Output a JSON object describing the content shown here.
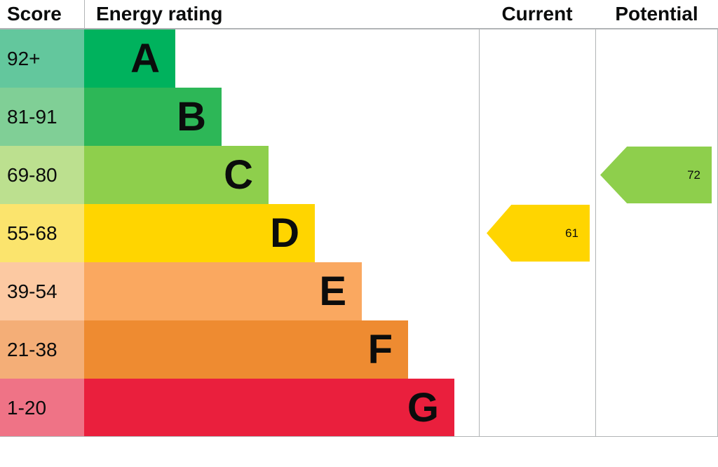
{
  "header": {
    "score": "Score",
    "energy_rating": "Energy rating",
    "current": "Current",
    "potential": "Potential"
  },
  "chart_data": {
    "type": "bar",
    "title": "Energy rating (EPC)",
    "xlabel": "",
    "ylabel": "",
    "bands": [
      {
        "score_range": "92+",
        "letter": "A",
        "bar_color": "#00b25d",
        "score_bg": "#63c79d"
      },
      {
        "score_range": "81-91",
        "letter": "B",
        "bar_color": "#2db757",
        "score_bg": "#80cf96"
      },
      {
        "score_range": "69-80",
        "letter": "C",
        "bar_color": "#8ecf4c",
        "score_bg": "#bce08f"
      },
      {
        "score_range": "55-68",
        "letter": "D",
        "bar_color": "#ffd500",
        "score_bg": "#fbe46d"
      },
      {
        "score_range": "39-54",
        "letter": "E",
        "bar_color": "#faa860",
        "score_bg": "#fcc9a2"
      },
      {
        "score_range": "21-38",
        "letter": "F",
        "bar_color": "#ee8b31",
        "score_bg": "#f4ae77"
      },
      {
        "score_range": "1-20",
        "letter": "G",
        "bar_color": "#ea1f3d",
        "score_bg": "#ef7386"
      }
    ],
    "current": {
      "value": 61,
      "band": "D",
      "color": "#ffd500"
    },
    "potential": {
      "value": 72,
      "band": "C",
      "color": "#8ecf4c"
    }
  }
}
